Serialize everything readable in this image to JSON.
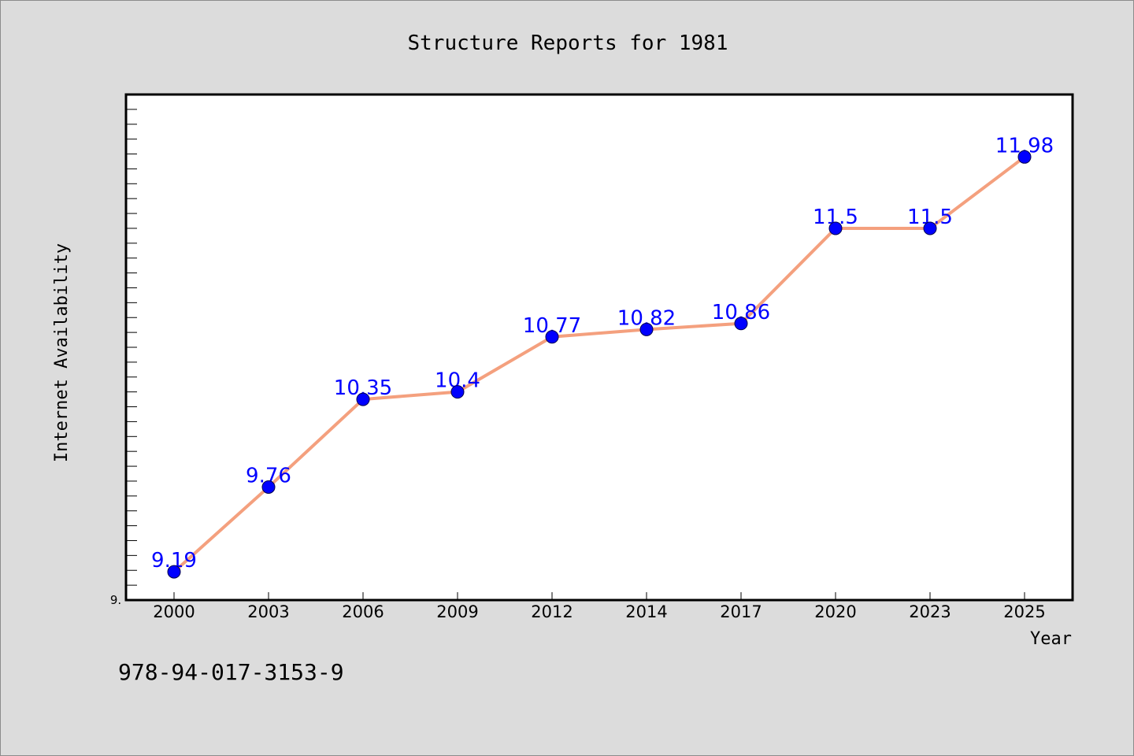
{
  "chart_data": {
    "type": "line",
    "title": "Structure Reports for 1981",
    "xlabel": "Year",
    "ylabel": "Internet Availability",
    "categories": [
      "2000",
      "2003",
      "2006",
      "2009",
      "2012",
      "2014",
      "2017",
      "2020",
      "2023",
      "2025"
    ],
    "series": [
      {
        "values": [
          9.19,
          9.76,
          10.35,
          10.4,
          10.77,
          10.82,
          10.86,
          11.5,
          11.5,
          11.98
        ],
        "data_labels": [
          "9.19",
          "9.76",
          "10.35",
          "10.4",
          "10.77",
          "10.82",
          "10.86",
          "11.5",
          "11.5",
          "11.98"
        ]
      }
    ],
    "y_tick_label": "9.",
    "ylim": [
      9.0,
      12.4
    ],
    "grid": false,
    "legend": "none",
    "line_color": "#f4a07e",
    "marker_color": "#0000ff",
    "label_color": "#0000ff",
    "annotation": "978-94-017-3153-9"
  }
}
